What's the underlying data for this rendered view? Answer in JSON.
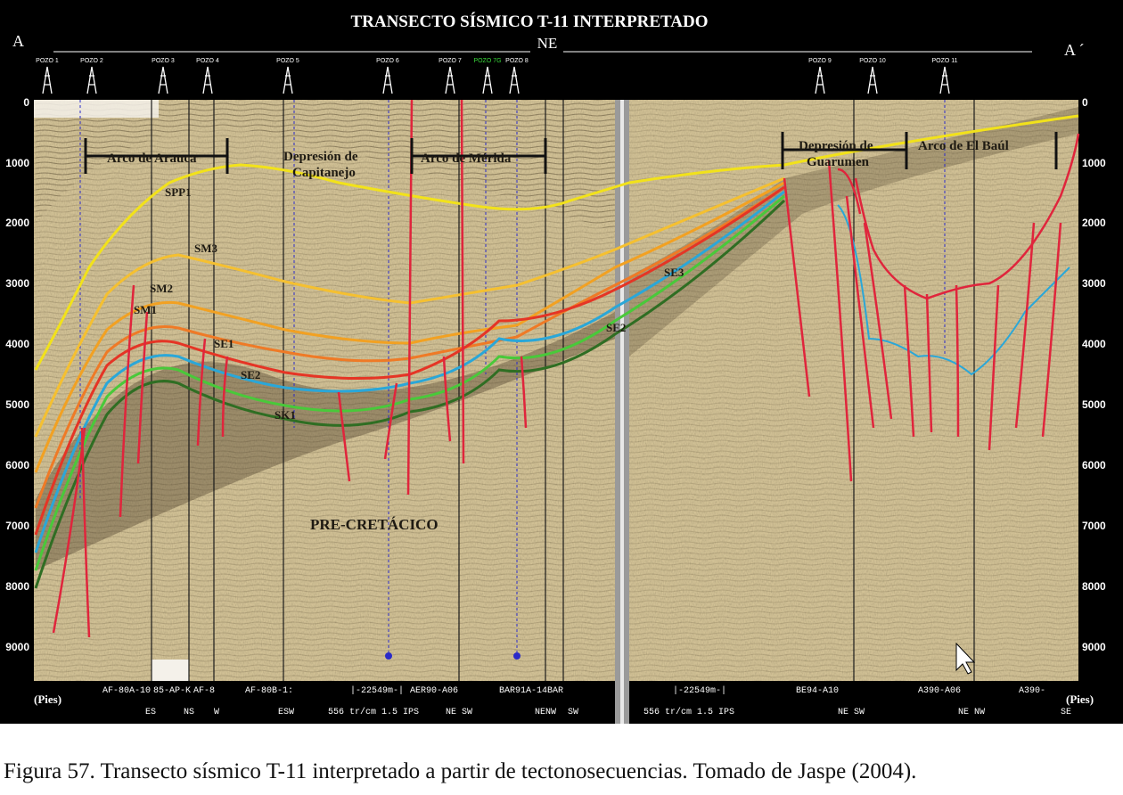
{
  "title": "TRANSECTO SÍSMICO T-11 INTERPRETADO",
  "direction": "NE",
  "endpoints": {
    "left": "A",
    "right": "A ´"
  },
  "depth_unit": "(Pies)",
  "depth_ticks": [
    "0",
    "1000",
    "2000",
    "3000",
    "4000",
    "5000",
    "6000",
    "7000",
    "8000",
    "9000"
  ],
  "wells": [
    "POZO 1",
    "POZO 2",
    "POZO 3",
    "POZO 4",
    "POZO 5",
    "POZO 6",
    "POZO 7",
    "POZO 7G",
    "POZO 8",
    "POZO 9",
    "POZO 10",
    "POZO 11"
  ],
  "structures": [
    "Arco de Arauca",
    "Depresión de Capitanejo",
    "Arco de Mérida",
    "Depresión de Guarumen",
    "Arco de El Baúl"
  ],
  "horizons": [
    "SPP1",
    "SM3",
    "SM2",
    "SM1",
    "SE1",
    "SE2",
    "SK1",
    "SE3",
    "SE2"
  ],
  "basement_label": "PRE-CRETÁCICO",
  "line_labels_top": [
    "AF-80A-10",
    "85-AP-K",
    "AF-8",
    "AF-80B-1:",
    "|-22549m-|",
    "AER90-A06",
    "BAR91A-14BAR",
    "|-22549m-|",
    "BE94-A10",
    "A390-A06",
    "A390-"
  ],
  "line_labels_bottom": [
    "ES",
    "NS",
    "W",
    "ESW",
    "556 tr/cm 1.5 IPS",
    "NE SW",
    "NENW",
    "SW",
    "556 tr/cm 1.5 IPS",
    "NE SW",
    "NE NW",
    "SE"
  ],
  "horizon_colors": {
    "SPP1": "#f2e21a",
    "SM3": "#f5c030",
    "SM2": "#f2a122",
    "SM1": "#ef7a26",
    "SE1": "#e53525",
    "SE2": "#2aa7d8",
    "SE2b": "#49c93a",
    "SK1": "#2f6e23",
    "fault": "#e0253c"
  },
  "caption": "Figura 57. Transecto sísmico T-11 interpretado a partir de tectonosecuencias. Tomado de Jaspe (2004)."
}
